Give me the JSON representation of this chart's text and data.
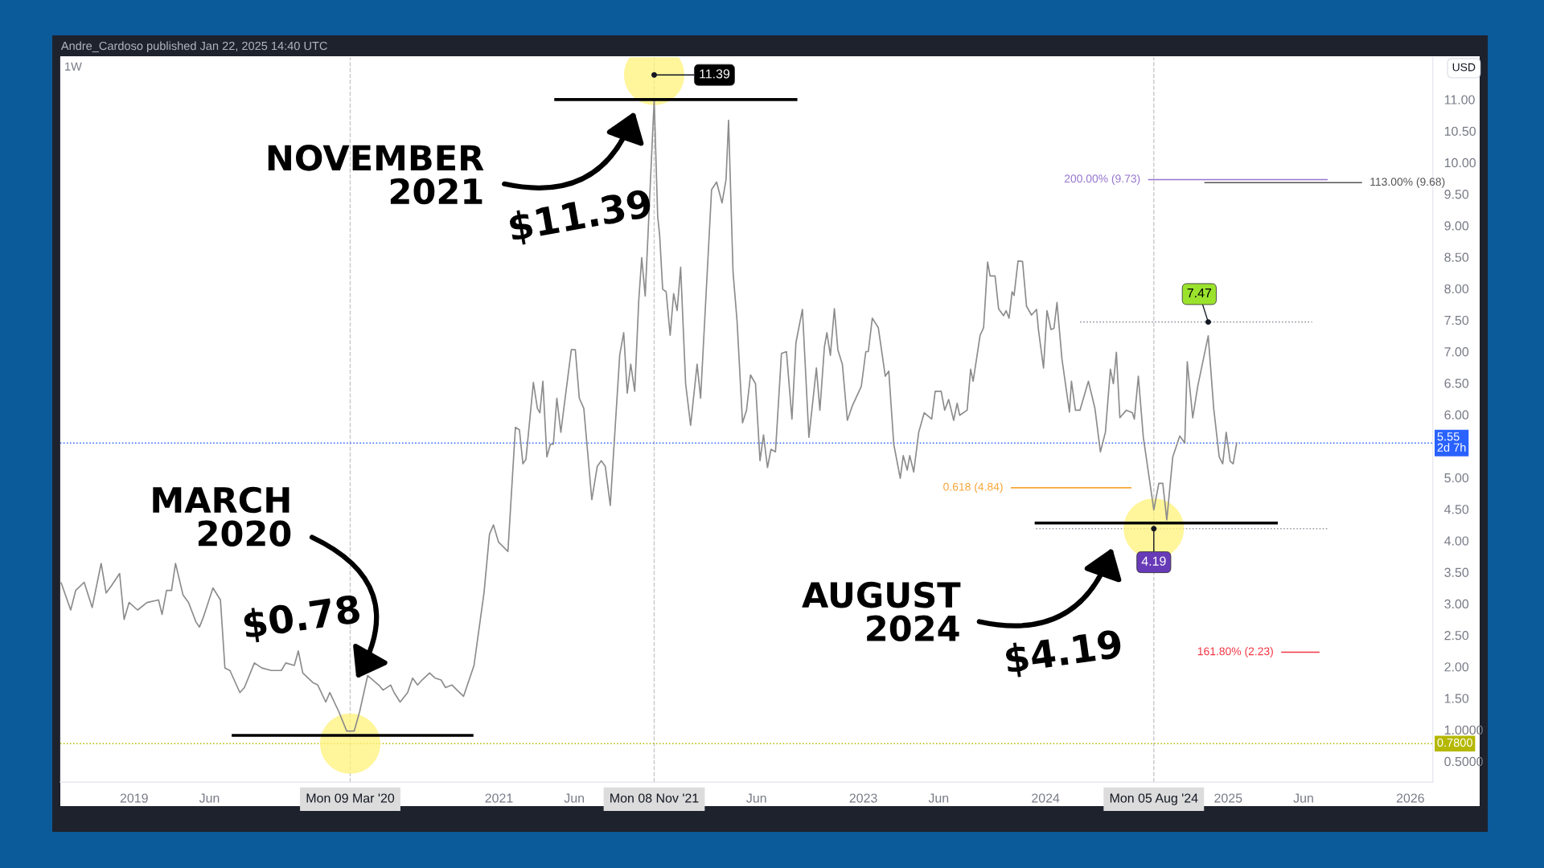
{
  "chart_data": {
    "type": "line",
    "subtitle": "1W",
    "x": [
      "2018-08-08",
      "2018-08-27",
      "2018-09-06",
      "2018-09-23",
      "2018-10-09",
      "2018-10-27",
      "2018-11-06",
      "2018-11-17",
      "2018-12-03",
      "2018-12-12",
      "2018-12-22",
      "2019-01-08",
      "2019-01-27",
      "2019-02-19",
      "2019-02-26",
      "2019-03-07",
      "2019-03-17",
      "2019-03-25",
      "2019-04-09",
      "2019-04-20",
      "2019-05-05",
      "2019-05-12",
      "2019-05-20",
      "2019-06-08",
      "2019-06-23",
      "2019-07-02",
      "2019-07-12",
      "2019-08-01",
      "2019-08-10",
      "2019-08-30",
      "2019-09-14",
      "2019-10-03",
      "2019-10-23",
      "2019-11-01",
      "2019-11-18",
      "2019-11-26",
      "2019-12-05",
      "2019-12-25",
      "2020-01-04",
      "2020-01-20",
      "2020-01-28",
      "2020-02-15",
      "2020-03-02",
      "2020-03-17",
      "2020-03-28",
      "2020-04-13",
      "2020-05-05",
      "2020-05-14",
      "2020-05-29",
      "2020-06-05",
      "2020-06-17",
      "2020-07-02",
      "2020-07-12",
      "2020-07-22",
      "2020-07-31",
      "2020-08-15",
      "2020-08-26",
      "2020-09-07",
      "2020-09-16",
      "2020-09-29",
      "2020-10-09",
      "2020-10-22",
      "2020-11-12",
      "2020-12-02",
      "2020-12-13",
      "2020-12-21",
      "2020-12-31",
      "2021-01-19",
      "2021-02-03",
      "2021-02-11",
      "2021-02-18",
      "2021-02-24",
      "2021-03-11",
      "2021-03-19",
      "2021-03-24",
      "2021-03-30",
      "2021-04-07",
      "2021-04-14",
      "2021-04-20",
      "2021-04-27",
      "2021-05-05",
      "2021-05-11",
      "2021-05-26",
      "2021-06-03",
      "2021-06-11",
      "2021-06-20",
      "2021-07-06",
      "2021-07-17",
      "2021-07-25",
      "2021-08-02",
      "2021-08-12",
      "2021-08-31",
      "2021-09-08",
      "2021-09-15",
      "2021-09-22",
      "2021-09-30",
      "2021-10-08",
      "2021-10-14",
      "2021-10-21",
      "2021-11-08",
      "2021-11-15",
      "2021-11-19",
      "2021-11-25",
      "2021-12-02",
      "2021-12-10",
      "2021-12-17",
      "2021-12-24",
      "2021-12-31",
      "2022-01-10",
      "2022-01-20",
      "2022-02-02",
      "2022-02-09",
      "2022-03-03",
      "2022-03-13",
      "2022-03-24",
      "2022-04-01",
      "2022-04-06",
      "2022-04-15",
      "2022-04-23",
      "2022-05-04",
      "2022-05-12",
      "2022-05-20",
      "2022-05-30",
      "2022-06-08",
      "2022-06-15",
      "2022-06-23",
      "2022-06-30",
      "2022-07-09",
      "2022-07-21",
      "2022-07-31",
      "2022-08-11",
      "2022-08-19",
      "2022-09-01",
      "2022-09-14",
      "2022-09-29",
      "2022-10-06",
      "2022-10-15",
      "2022-10-20",
      "2022-10-27",
      "2022-11-04",
      "2022-11-11",
      "2022-11-20",
      "2022-11-30",
      "2022-12-10",
      "2022-12-28",
      "2023-01-06",
      "2023-01-11",
      "2023-01-19",
      "2023-01-31",
      "2023-02-14",
      "2023-02-21",
      "2023-03-03",
      "2023-03-16",
      "2023-03-22",
      "2023-03-30",
      "2023-04-04",
      "2023-04-12",
      "2023-04-22",
      "2023-05-03",
      "2023-05-18",
      "2023-05-25",
      "2023-06-06",
      "2023-06-13",
      "2023-06-21",
      "2023-07-01",
      "2023-07-08",
      "2023-07-13",
      "2023-07-28",
      "2023-08-04",
      "2023-08-09",
      "2023-08-23",
      "2023-08-30",
      "2023-09-07",
      "2023-09-12",
      "2023-09-22",
      "2023-09-29",
      "2023-10-09",
      "2023-10-14",
      "2023-10-20",
      "2023-10-26",
      "2023-10-30",
      "2023-11-07",
      "2023-11-16",
      "2023-11-24",
      "2023-12-04",
      "2023-12-14",
      "2023-12-18",
      "2023-12-28",
      "2024-01-04",
      "2024-01-12",
      "2024-01-18",
      "2024-01-24",
      "2024-02-03",
      "2024-02-18",
      "2024-02-22",
      "2024-03-01",
      "2024-03-10",
      "2024-03-27",
      "2024-04-09",
      "2024-04-20",
      "2024-04-30",
      "2024-05-10",
      "2024-05-16",
      "2024-05-22",
      "2024-05-29",
      "2024-06-11",
      "2024-06-23",
      "2024-06-27",
      "2024-07-05",
      "2024-07-15",
      "2024-08-05",
      "2024-08-15",
      "2024-08-23",
      "2024-08-31",
      "2024-09-12",
      "2024-09-26",
      "2024-10-06",
      "2024-10-11",
      "2024-10-22",
      "2024-11-01",
      "2024-11-22",
      "2024-12-03",
      "2024-12-14",
      "2024-12-21",
      "2024-12-28",
      "2025-01-05",
      "2025-01-11",
      "2025-01-18"
    ],
    "series": [
      {
        "color": "#8c8c8c",
        "values": [
          3.33,
          2.9,
          3.21,
          3.34,
          2.94,
          3.64,
          3.17,
          3.29,
          3.48,
          2.75,
          3.02,
          2.9,
          3.02,
          3.06,
          2.83,
          3.21,
          3.21,
          3.64,
          3.14,
          3.02,
          2.71,
          2.63,
          2.79,
          3.25,
          3.06,
          1.98,
          1.94,
          1.59,
          1.67,
          2.06,
          1.98,
          1.94,
          1.94,
          2.06,
          2.02,
          2.25,
          1.9,
          1.75,
          1.71,
          1.44,
          1.59,
          1.29,
          0.98,
          0.98,
          1.29,
          1.86,
          1.71,
          1.63,
          1.71,
          1.59,
          1.44,
          1.59,
          1.82,
          1.71,
          1.79,
          1.9,
          1.82,
          1.79,
          1.67,
          1.71,
          1.63,
          1.53,
          2.02,
          3.17,
          4.1,
          4.25,
          3.98,
          3.83,
          5.8,
          5.76,
          5.22,
          5.29,
          6.51,
          6.1,
          6.03,
          6.53,
          5.33,
          5.53,
          5.53,
          6.26,
          5.72,
          6.1,
          7.03,
          7.03,
          6.26,
          6.1,
          4.65,
          5.18,
          5.27,
          5.18,
          4.56,
          6.95,
          7.3,
          6.34,
          6.8,
          6.37,
          7.8,
          8.49,
          7.88,
          11.0,
          9.15,
          8.84,
          7.99,
          7.95,
          7.26,
          7.92,
          7.65,
          8.34,
          6.49,
          5.83,
          6.8,
          6.26,
          9.57,
          9.69,
          9.36,
          9.73,
          10.67,
          8.26,
          7.49,
          5.87,
          6.07,
          6.63,
          6.49,
          5.27,
          5.68,
          5.16,
          5.45,
          5.41,
          6.97,
          7.0,
          5.93,
          7.14,
          7.67,
          5.64,
          6.74,
          6.07,
          7.07,
          7.3,
          6.94,
          7.68,
          7.03,
          6.8,
          5.91,
          6.14,
          6.45,
          7.0,
          7.0,
          7.53,
          7.38,
          6.61,
          6.69,
          5.53,
          4.99,
          5.35,
          5.12,
          5.35,
          5.09,
          5.72,
          6.03,
          5.93,
          6.37,
          6.37,
          6.07,
          6.24,
          5.91,
          6.18,
          5.99,
          6.07,
          6.72,
          6.53,
          7.26,
          7.38,
          8.42,
          8.2,
          8.2,
          7.68,
          7.57,
          7.65,
          7.53,
          7.95,
          7.89,
          8.44,
          8.43,
          7.72,
          7.58,
          7.67,
          7.34,
          6.74,
          7.65,
          7.35,
          7.37,
          7.78,
          6.88,
          6.04,
          6.53,
          6.07,
          6.07,
          6.53,
          6.1,
          5.41,
          5.72,
          6.72,
          6.49,
          6.99,
          5.95,
          6.07,
          6.03,
          5.93,
          6.61,
          5.64,
          4.49,
          4.91,
          4.91,
          4.33,
          5.33,
          5.66,
          5.55,
          6.84,
          5.95,
          6.45,
          7.25,
          6.1,
          5.33,
          5.22,
          5.72,
          5.26,
          5.22,
          5.55
        ]
      }
    ],
    "xlim": [
      "2018-08-06",
      "2026-02-15"
    ],
    "xticks": [
      {
        "value": "2019-01-01",
        "label": "2019"
      },
      {
        "value": "2019-06-01",
        "label": "Jun"
      },
      {
        "value": "2020-03-09",
        "label": "Mon 09 Mar '20"
      },
      {
        "value": "2021-01-01",
        "label": "2021"
      },
      {
        "value": "2021-06-01",
        "label": "Jun"
      },
      {
        "value": "2021-11-08",
        "label": "Mon 08 Nov '21"
      },
      {
        "value": "2022-06-01",
        "label": "Jun"
      },
      {
        "value": "2023-01-01",
        "label": "2023"
      },
      {
        "value": "2023-06-01",
        "label": "Jun"
      },
      {
        "value": "2024-01-01",
        "label": "2024"
      },
      {
        "value": "2024-08-05",
        "label": "Mon 05 Aug '24"
      },
      {
        "value": "2025-01-01",
        "label": "2025"
      },
      {
        "value": "2025-06-01",
        "label": "Jun"
      },
      {
        "value": "2026-01-01",
        "label": "2026"
      }
    ],
    "ylim": [
      0.17,
      11.67
    ],
    "yticks": [
      {
        "value": 0.5,
        "label": "0.5000"
      },
      {
        "value": 1.0,
        "label": "1.0000"
      },
      {
        "value": 1.5,
        "label": "1.50"
      },
      {
        "value": 2.0,
        "label": "2.00"
      },
      {
        "value": 2.5,
        "label": "2.50"
      },
      {
        "value": 3.0,
        "label": "3.00"
      },
      {
        "value": 3.5,
        "label": "3.50"
      },
      {
        "value": 4.0,
        "label": "4.00"
      },
      {
        "value": 4.5,
        "label": "4.50"
      },
      {
        "value": 5.0,
        "label": "5.00"
      },
      {
        "value": 6.0,
        "label": "6.00"
      },
      {
        "value": 6.5,
        "label": "6.50"
      },
      {
        "value": 7.0,
        "label": "7.00"
      },
      {
        "value": 7.5,
        "label": "7.50"
      },
      {
        "value": 8.0,
        "label": "8.00"
      },
      {
        "value": 8.5,
        "label": "8.50"
      },
      {
        "value": 9.0,
        "label": "9.00"
      },
      {
        "value": 9.5,
        "label": "9.50"
      },
      {
        "value": 10.0,
        "label": "10.00"
      },
      {
        "value": 10.5,
        "label": "10.50"
      },
      {
        "value": 11.0,
        "label": "11.00"
      }
    ],
    "ref_lines": [
      {
        "axis": "y",
        "value": 0.78,
        "label": "0.7800",
        "color": "#b5b800",
        "line_style": "dotted"
      },
      {
        "axis": "y",
        "value": 5.55,
        "label": "5.55\n2d 7h",
        "color": "#2962ff",
        "line_style": "dotted"
      },
      {
        "axis": "y",
        "value": 9.73,
        "label": "200.00% (9.73)",
        "color": "#9575cd",
        "line_style": "solid"
      },
      {
        "axis": "y",
        "value": 9.68,
        "label": "113.00% (9.68)",
        "color": "#555555",
        "line_style": "solid"
      },
      {
        "axis": "y",
        "value": 7.47,
        "color": "#9598a1",
        "line_style": "dotted"
      },
      {
        "axis": "y",
        "value": 4.84,
        "label": "0.618 (4.84)",
        "color": "#f7a63a",
        "line_style": "solid"
      },
      {
        "axis": "y",
        "value": 4.19,
        "color": "#9598a1",
        "line_style": "dotted"
      },
      {
        "axis": "y",
        "value": 2.23,
        "label": "161.80% (2.23)",
        "color": "#f23645",
        "line_style": "solid"
      },
      {
        "axis": "y",
        "value": 11.0,
        "color": "#000000",
        "line_style": "solid"
      },
      {
        "axis": "y",
        "value": 0.91,
        "color": "#000000",
        "line_style": "solid"
      },
      {
        "axis": "y",
        "value": 4.28,
        "color": "#000000",
        "line_style": "solid"
      },
      {
        "axis": "x",
        "value": "2020-03-09",
        "color": "#c8c8c8",
        "line_style": "dashed"
      },
      {
        "axis": "x",
        "value": "2021-11-08",
        "color": "#c8c8c8",
        "line_style": "dashed"
      },
      {
        "axis": "x",
        "value": "2024-08-05",
        "color": "#c8c8c8",
        "line_style": "dashed"
      }
    ],
    "annotations": [
      "Andre_Cardoso published Jan 22, 2025 14:40 UTC",
      "USD",
      {
        "text": "11.39",
        "x": "2021-11-08",
        "y": 11.39
      },
      {
        "text": "7.47",
        "x": "2024-11-22",
        "y": 7.47
      },
      {
        "text": "4.19",
        "x": "2024-08-05",
        "y": 4.19
      },
      "NOVEMBER\n2021",
      {
        "text": "$11.39",
        "x": "2021-11-08",
        "y": 11.39
      },
      "MARCH\n2020",
      {
        "text": "$0.78",
        "x": "2020-03-09",
        "y": 0.78
      },
      "AUGUST\n2024",
      {
        "text": "$4.19",
        "x": "2024-08-05",
        "y": 4.19
      }
    ]
  }
}
